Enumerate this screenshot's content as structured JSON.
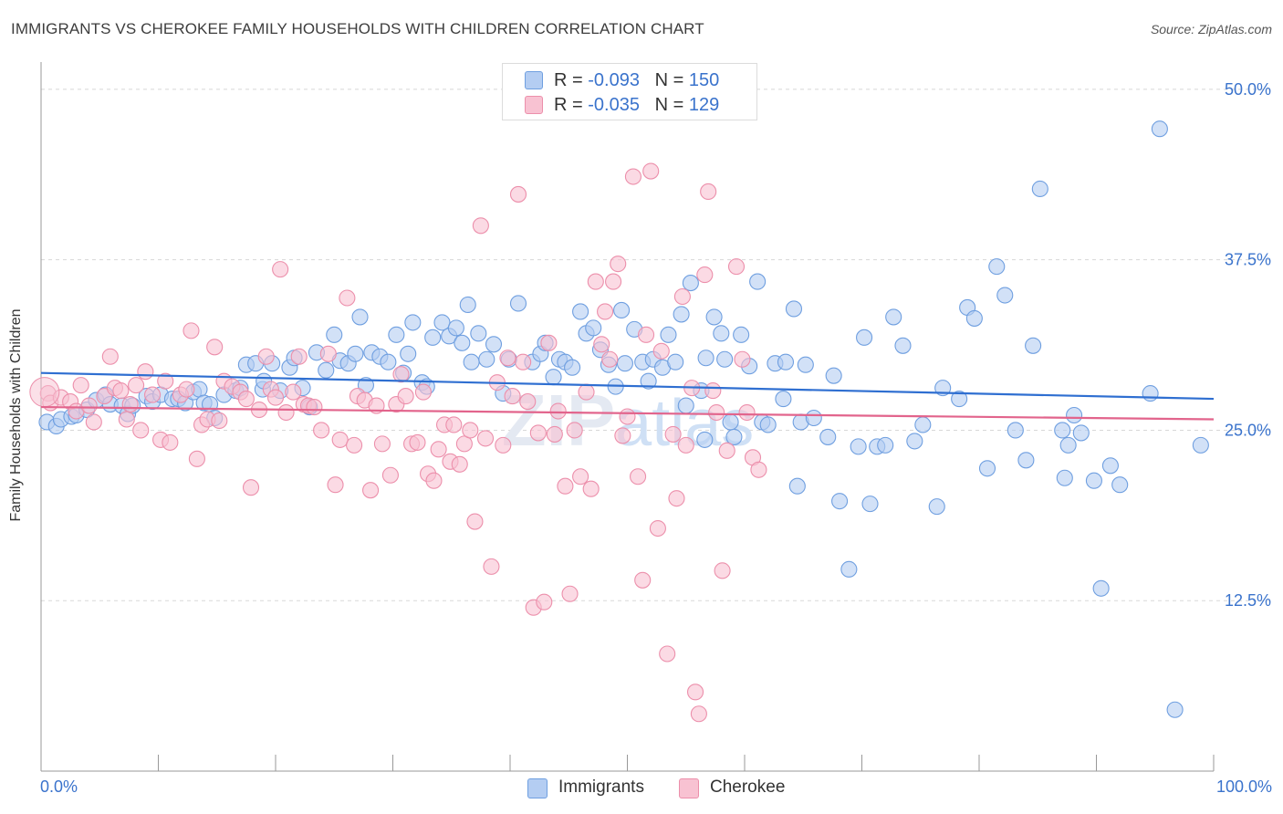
{
  "title": "IMMIGRANTS VS CHEROKEE FAMILY HOUSEHOLDS WITH CHILDREN CORRELATION CHART",
  "source": "Source: ZipAtlas.com",
  "legend": {
    "rows": [
      {
        "r_label": "R = ",
        "r_value": "-0.093",
        "n_label": "N = ",
        "n_value": "150"
      },
      {
        "r_label": "R = ",
        "r_value": "-0.035",
        "n_label": "N = ",
        "n_value": "129"
      }
    ]
  },
  "x_tick_left": "0.0%",
  "x_tick_right": "100.0%",
  "colors": {
    "immigrants_fill": "#b4cdf2",
    "immigrants_stroke": "#6f9fe0",
    "immigrants_line": "#2f6fd1",
    "cherokee_fill": "#f8c2d2",
    "cherokee_stroke": "#ec8fab",
    "cherokee_line": "#e2648c",
    "grid": "#d8d8d8",
    "axis": "#999999",
    "tick_label": "#3a73cc"
  },
  "chart_data": {
    "type": "scatter",
    "title": "IMMIGRANTS VS CHEROKEE FAMILY HOUSEHOLDS WITH CHILDREN CORRELATION CHART",
    "xlabel": "",
    "ylabel": "Family Households with Children",
    "xlim": [
      0,
      100
    ],
    "ylim": [
      0,
      52
    ],
    "y_ticks": [
      12.5,
      25.0,
      37.5,
      50.0
    ],
    "y_tick_labels": [
      "12.5%",
      "25.0%",
      "37.5%",
      "50.0%"
    ],
    "grid": "horizontal dashed",
    "legend_position": "bottom",
    "watermark": "ZIPatlas",
    "series": [
      {
        "name": "Immigrants",
        "trend": [
          [
            0,
            29.2
          ],
          [
            100,
            27.3
          ]
        ],
        "points": [
          [
            0.5,
            25.6
          ],
          [
            1.3,
            25.3
          ],
          [
            1.7,
            25.8
          ],
          [
            2.6,
            26.0
          ],
          [
            3.0,
            26.1
          ],
          [
            3.9,
            26.5
          ],
          [
            4.7,
            27.2
          ],
          [
            5.5,
            27.6
          ],
          [
            5.9,
            26.9
          ],
          [
            6.9,
            26.8
          ],
          [
            7.4,
            26.2
          ],
          [
            7.8,
            26.8
          ],
          [
            9.0,
            27.5
          ],
          [
            9.5,
            27.1
          ],
          [
            10.2,
            27.6
          ],
          [
            11.2,
            27.3
          ],
          [
            11.7,
            27.3
          ],
          [
            12.3,
            27.0
          ],
          [
            13.0,
            27.8
          ],
          [
            13.5,
            28.0
          ],
          [
            13.9,
            27.0
          ],
          [
            14.4,
            26.9
          ],
          [
            14.8,
            25.9
          ],
          [
            15.6,
            27.6
          ],
          [
            16.6,
            27.9
          ],
          [
            17.0,
            28.1
          ],
          [
            17.5,
            29.8
          ],
          [
            18.3,
            29.9
          ],
          [
            18.9,
            28.0
          ],
          [
            19.0,
            28.6
          ],
          [
            19.7,
            29.9
          ],
          [
            20.4,
            27.9
          ],
          [
            21.2,
            29.6
          ],
          [
            21.6,
            30.3
          ],
          [
            22.3,
            28.1
          ],
          [
            22.9,
            26.7
          ],
          [
            23.5,
            30.7
          ],
          [
            24.3,
            29.4
          ],
          [
            25.0,
            32.0
          ],
          [
            25.5,
            30.1
          ],
          [
            26.2,
            29.9
          ],
          [
            26.8,
            30.6
          ],
          [
            27.2,
            33.3
          ],
          [
            27.7,
            28.3
          ],
          [
            28.2,
            30.7
          ],
          [
            28.9,
            30.4
          ],
          [
            29.6,
            30.0
          ],
          [
            30.3,
            32.0
          ],
          [
            30.9,
            29.2
          ],
          [
            31.3,
            30.6
          ],
          [
            31.7,
            32.9
          ],
          [
            32.5,
            28.5
          ],
          [
            32.9,
            28.2
          ],
          [
            33.4,
            31.8
          ],
          [
            34.2,
            32.9
          ],
          [
            34.8,
            31.9
          ],
          [
            35.4,
            32.5
          ],
          [
            35.9,
            31.4
          ],
          [
            36.4,
            34.2
          ],
          [
            36.7,
            30.0
          ],
          [
            37.3,
            32.1
          ],
          [
            38.0,
            30.2
          ],
          [
            38.6,
            31.3
          ],
          [
            39.4,
            27.7
          ],
          [
            39.9,
            30.2
          ],
          [
            40.7,
            34.3
          ],
          [
            41.9,
            30.0
          ],
          [
            42.6,
            30.6
          ],
          [
            43.0,
            31.4
          ],
          [
            43.7,
            28.9
          ],
          [
            44.2,
            30.2
          ],
          [
            44.7,
            30.0
          ],
          [
            45.3,
            29.6
          ],
          [
            46.0,
            33.7
          ],
          [
            46.5,
            32.1
          ],
          [
            47.1,
            32.5
          ],
          [
            47.7,
            30.9
          ],
          [
            48.4,
            29.8
          ],
          [
            49.0,
            28.2
          ],
          [
            49.5,
            33.8
          ],
          [
            49.8,
            29.9
          ],
          [
            50.6,
            32.4
          ],
          [
            51.3,
            30.0
          ],
          [
            51.8,
            28.6
          ],
          [
            52.2,
            30.2
          ],
          [
            53.0,
            29.6
          ],
          [
            53.5,
            32.0
          ],
          [
            54.1,
            30.0
          ],
          [
            54.6,
            33.5
          ],
          [
            55.0,
            26.8
          ],
          [
            55.4,
            35.8
          ],
          [
            56.3,
            27.9
          ],
          [
            56.7,
            30.3
          ],
          [
            56.6,
            24.3
          ],
          [
            57.4,
            33.3
          ],
          [
            58.0,
            32.1
          ],
          [
            58.3,
            30.2
          ],
          [
            58.8,
            25.6
          ],
          [
            59.1,
            24.5
          ],
          [
            59.7,
            32.0
          ],
          [
            60.4,
            29.7
          ],
          [
            61.1,
            35.9
          ],
          [
            61.5,
            25.6
          ],
          [
            62.0,
            25.4
          ],
          [
            62.6,
            29.9
          ],
          [
            63.3,
            27.3
          ],
          [
            63.5,
            30.0
          ],
          [
            64.2,
            33.9
          ],
          [
            64.5,
            20.9
          ],
          [
            64.8,
            25.6
          ],
          [
            65.2,
            29.8
          ],
          [
            65.9,
            25.9
          ],
          [
            67.1,
            24.5
          ],
          [
            67.6,
            29.0
          ],
          [
            68.1,
            19.8
          ],
          [
            68.9,
            14.8
          ],
          [
            69.7,
            23.8
          ],
          [
            70.2,
            31.8
          ],
          [
            70.7,
            19.6
          ],
          [
            71.3,
            23.8
          ],
          [
            72.0,
            23.9
          ],
          [
            72.7,
            33.3
          ],
          [
            73.5,
            31.2
          ],
          [
            74.5,
            24.2
          ],
          [
            75.2,
            25.4
          ],
          [
            76.4,
            19.4
          ],
          [
            76.9,
            28.1
          ],
          [
            78.3,
            27.3
          ],
          [
            79.0,
            34.0
          ],
          [
            79.6,
            33.2
          ],
          [
            80.7,
            22.2
          ],
          [
            81.5,
            37.0
          ],
          [
            82.2,
            34.9
          ],
          [
            83.1,
            25.0
          ],
          [
            84.0,
            22.8
          ],
          [
            84.6,
            31.2
          ],
          [
            85.2,
            42.7
          ],
          [
            87.1,
            25.0
          ],
          [
            87.3,
            21.5
          ],
          [
            87.6,
            23.9
          ],
          [
            88.1,
            26.1
          ],
          [
            88.7,
            24.8
          ],
          [
            89.8,
            21.3
          ],
          [
            90.4,
            13.4
          ],
          [
            91.2,
            22.4
          ],
          [
            92.0,
            21.0
          ],
          [
            94.6,
            27.7
          ],
          [
            95.4,
            47.1
          ],
          [
            96.7,
            4.5
          ],
          [
            98.9,
            23.9
          ]
        ]
      },
      {
        "name": "Cherokee",
        "trend": [
          [
            0,
            26.7
          ],
          [
            100,
            25.8
          ]
        ],
        "points": [
          [
            0.6,
            27.7
          ],
          [
            0.8,
            27.0
          ],
          [
            1.7,
            27.4
          ],
          [
            2.5,
            27.1
          ],
          [
            3.0,
            26.4
          ],
          [
            3.4,
            28.3
          ],
          [
            4.1,
            26.8
          ],
          [
            4.5,
            25.6
          ],
          [
            5.4,
            27.5
          ],
          [
            5.9,
            30.4
          ],
          [
            6.3,
            28.1
          ],
          [
            6.8,
            27.9
          ],
          [
            7.3,
            25.8
          ],
          [
            7.6,
            26.9
          ],
          [
            8.1,
            28.3
          ],
          [
            8.5,
            25.0
          ],
          [
            8.9,
            29.3
          ],
          [
            9.5,
            27.6
          ],
          [
            10.2,
            24.3
          ],
          [
            10.6,
            28.6
          ],
          [
            11.0,
            24.1
          ],
          [
            11.9,
            27.6
          ],
          [
            12.4,
            28.0
          ],
          [
            12.8,
            32.3
          ],
          [
            13.3,
            22.9
          ],
          [
            13.7,
            25.4
          ],
          [
            14.2,
            25.8
          ],
          [
            14.8,
            31.1
          ],
          [
            15.2,
            25.7
          ],
          [
            15.6,
            28.6
          ],
          [
            16.3,
            28.2
          ],
          [
            17.0,
            27.8
          ],
          [
            17.5,
            27.3
          ],
          [
            17.9,
            20.8
          ],
          [
            18.6,
            26.5
          ],
          [
            19.2,
            30.4
          ],
          [
            19.6,
            28.0
          ],
          [
            20.0,
            27.4
          ],
          [
            20.4,
            36.8
          ],
          [
            20.9,
            26.3
          ],
          [
            21.5,
            27.8
          ],
          [
            22.0,
            30.4
          ],
          [
            22.4,
            26.9
          ],
          [
            22.8,
            26.8
          ],
          [
            23.3,
            26.7
          ],
          [
            23.9,
            25.0
          ],
          [
            24.5,
            30.6
          ],
          [
            25.1,
            21.0
          ],
          [
            25.5,
            24.3
          ],
          [
            26.1,
            34.7
          ],
          [
            26.7,
            23.9
          ],
          [
            27.0,
            27.5
          ],
          [
            27.6,
            27.2
          ],
          [
            28.1,
            20.6
          ],
          [
            28.6,
            26.8
          ],
          [
            29.1,
            24.0
          ],
          [
            29.8,
            21.7
          ],
          [
            30.3,
            26.9
          ],
          [
            30.7,
            29.1
          ],
          [
            31.1,
            27.5
          ],
          [
            31.6,
            24.0
          ],
          [
            32.1,
            24.1
          ],
          [
            32.6,
            27.8
          ],
          [
            33.0,
            21.8
          ],
          [
            33.5,
            21.3
          ],
          [
            33.9,
            23.6
          ],
          [
            34.4,
            25.4
          ],
          [
            34.9,
            22.7
          ],
          [
            35.2,
            25.4
          ],
          [
            35.7,
            22.5
          ],
          [
            36.1,
            24.0
          ],
          [
            36.6,
            25.0
          ],
          [
            37.0,
            18.3
          ],
          [
            37.5,
            40.0
          ],
          [
            37.9,
            24.4
          ],
          [
            38.4,
            15.0
          ],
          [
            38.9,
            28.5
          ],
          [
            39.4,
            23.9
          ],
          [
            39.8,
            30.3
          ],
          [
            40.2,
            27.5
          ],
          [
            40.7,
            42.3
          ],
          [
            41.1,
            30.0
          ],
          [
            41.5,
            27.1
          ],
          [
            42.0,
            12.0
          ],
          [
            42.4,
            24.8
          ],
          [
            42.9,
            12.4
          ],
          [
            43.3,
            31.4
          ],
          [
            43.8,
            24.7
          ],
          [
            44.1,
            26.4
          ],
          [
            44.7,
            20.9
          ],
          [
            45.1,
            13.0
          ],
          [
            45.5,
            25.0
          ],
          [
            46.0,
            21.6
          ],
          [
            46.5,
            27.8
          ],
          [
            46.9,
            20.7
          ],
          [
            47.3,
            35.9
          ],
          [
            47.8,
            31.3
          ],
          [
            48.1,
            33.7
          ],
          [
            48.5,
            30.2
          ],
          [
            48.8,
            35.9
          ],
          [
            49.2,
            37.2
          ],
          [
            49.6,
            24.6
          ],
          [
            50.0,
            26.0
          ],
          [
            50.5,
            43.6
          ],
          [
            50.9,
            21.6
          ],
          [
            51.3,
            14.0
          ],
          [
            51.6,
            32.0
          ],
          [
            52.0,
            44.0
          ],
          [
            52.6,
            17.8
          ],
          [
            52.9,
            30.8
          ],
          [
            53.4,
            8.6
          ],
          [
            53.9,
            24.7
          ],
          [
            54.2,
            20.0
          ],
          [
            54.7,
            34.8
          ],
          [
            55.0,
            23.9
          ],
          [
            55.5,
            28.1
          ],
          [
            55.8,
            5.8
          ],
          [
            56.1,
            4.2
          ],
          [
            56.6,
            36.4
          ],
          [
            56.9,
            42.5
          ],
          [
            57.3,
            27.9
          ],
          [
            57.6,
            26.3
          ],
          [
            58.1,
            14.7
          ],
          [
            58.5,
            23.5
          ],
          [
            59.3,
            37.0
          ],
          [
            59.8,
            30.2
          ],
          [
            60.2,
            26.3
          ],
          [
            60.7,
            23.0
          ],
          [
            61.2,
            22.1
          ]
        ]
      }
    ]
  },
  "bottom_legend": [
    "Immigrants",
    "Cherokee"
  ]
}
